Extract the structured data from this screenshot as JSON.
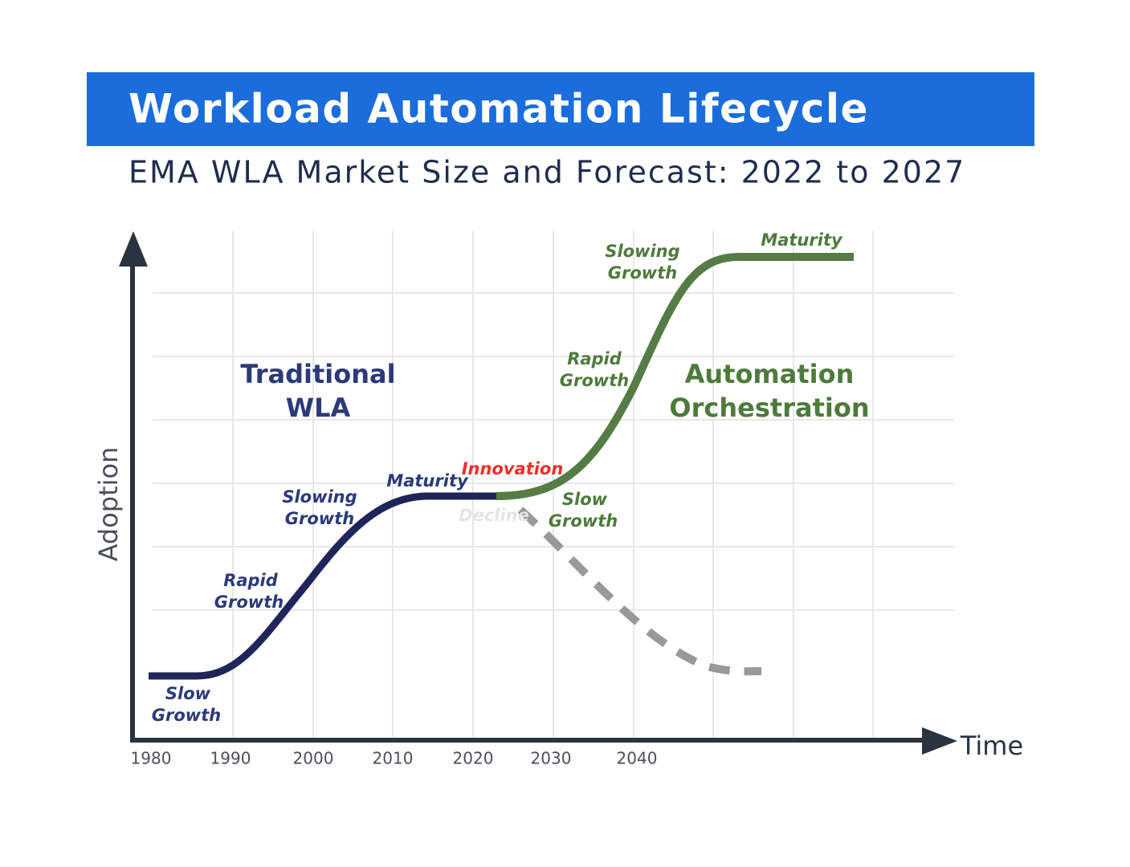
{
  "header": {
    "title": "Workload Automation Lifecycle",
    "subtitle": "EMA WLA Market Size and Forecast: 2022 to 2027"
  },
  "axes": {
    "y_label": "Adoption",
    "x_label": "Time"
  },
  "x_ticks": [
    "1980",
    "1990",
    "2000",
    "2010",
    "2020",
    "2030",
    "2040"
  ],
  "regions": [
    {
      "lines": [
        "Traditional",
        "WLA"
      ]
    },
    {
      "lines": [
        "Automation",
        "Orchestration"
      ]
    }
  ],
  "phase_labels": [
    {
      "lines": [
        "Slow",
        "Growth"
      ]
    },
    {
      "lines": [
        "Rapid",
        "Growth"
      ]
    },
    {
      "lines": [
        "Slowing",
        "Growth"
      ]
    },
    {
      "lines": [
        "Maturity"
      ]
    },
    {
      "lines": [
        "Innovation"
      ]
    },
    {
      "lines": [
        "Decline"
      ]
    },
    {
      "lines": [
        "Slow",
        "Growth"
      ]
    },
    {
      "lines": [
        "Rapid",
        "Growth"
      ]
    },
    {
      "lines": [
        "Slowing",
        "Growth"
      ]
    },
    {
      "lines": [
        "Maturity"
      ]
    }
  ]
}
